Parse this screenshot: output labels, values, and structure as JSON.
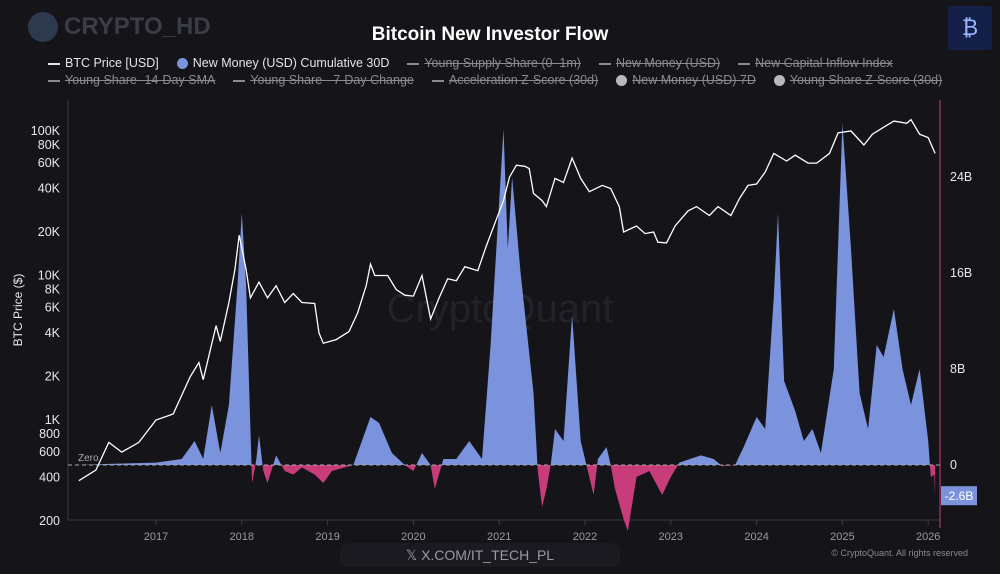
{
  "brand": {
    "watermark": "CRYPTO_HD",
    "logo_icon": "bitcoin-magnifier-icon"
  },
  "title": "Bitcoin New Investor Flow",
  "legend": [
    {
      "label": "BTC Price [USD]",
      "marker": "line",
      "enabled": true,
      "color": "#ffffff"
    },
    {
      "label": "New Money (USD) Cumulative 30D",
      "marker": "dot",
      "enabled": true,
      "color": "#7b93dc"
    },
    {
      "label": "Young Supply Share (0–1m)",
      "marker": "line",
      "enabled": false
    },
    {
      "label": "New Money (USD)",
      "marker": "line",
      "enabled": false
    },
    {
      "label": "New Capital Inflow Index",
      "marker": "line",
      "enabled": false
    },
    {
      "label": "Young Share -14-Day SMA",
      "marker": "line",
      "enabled": false
    },
    {
      "label": "Young Share - 7-Day Change",
      "marker": "line",
      "enabled": false
    },
    {
      "label": "Acceleration Z-Score (30d)",
      "marker": "line",
      "enabled": false
    },
    {
      "label": "New Money (USD) 7D",
      "marker": "dot",
      "enabled": false,
      "color": "#b8b8c0"
    },
    {
      "label": "Young Share Z-Score (30d)",
      "marker": "dot",
      "enabled": false,
      "color": "#b8b8c0"
    }
  ],
  "chart_data": {
    "type": "line+area",
    "title": "Bitcoin New Investor Flow",
    "ylabel_left": "BTC Price ($)",
    "yscale_left": "log",
    "ylim_left": [
      200,
      200000
    ],
    "yticks_left": [
      "100K",
      "80K",
      "60K",
      "40K",
      "20K",
      "10K",
      "8K",
      "6K",
      "4K",
      "2K",
      "1K",
      "800",
      "600",
      "400",
      "200"
    ],
    "ytick_values_left": [
      100000,
      80000,
      60000,
      40000,
      20000,
      10000,
      8000,
      6000,
      4000,
      2000,
      1000,
      800,
      600,
      400,
      200
    ],
    "yticks_right": [
      "24B",
      "16B",
      "8B",
      "0"
    ],
    "ytick_values_right": [
      24,
      16,
      8,
      0
    ],
    "ylim_right_billions": [
      -4.6,
      30
    ],
    "xticks": [
      "2017",
      "2018",
      "2019",
      "2020",
      "2021",
      "2022",
      "2023",
      "2024",
      "2025",
      "2026"
    ],
    "zero_label": "Zero",
    "last_value_label": "-2.6B",
    "grid": false,
    "colors": {
      "price": "#ffffff",
      "positive": "#7b93dc",
      "negative": "#c83c7a",
      "right_axis": "#c83c7a"
    },
    "price_series": {
      "name": "BTC Price [USD]",
      "x": [
        2016.1,
        2016.3,
        2016.45,
        2016.6,
        2016.8,
        2017.0,
        2017.2,
        2017.4,
        2017.5,
        2017.55,
        2017.7,
        2017.75,
        2017.85,
        2017.92,
        2017.97,
        2018.05,
        2018.1,
        2018.2,
        2018.3,
        2018.4,
        2018.5,
        2018.6,
        2018.7,
        2018.85,
        2018.9,
        2018.95,
        2019.1,
        2019.25,
        2019.35,
        2019.45,
        2019.5,
        2019.55,
        2019.7,
        2019.8,
        2019.9,
        2020.0,
        2020.1,
        2020.2,
        2020.3,
        2020.4,
        2020.5,
        2020.6,
        2020.75,
        2020.85,
        2020.95,
        2021.05,
        2021.12,
        2021.2,
        2021.3,
        2021.35,
        2021.4,
        2021.5,
        2021.55,
        2021.65,
        2021.75,
        2021.85,
        2021.95,
        2022.05,
        2022.2,
        2022.3,
        2022.4,
        2022.45,
        2022.6,
        2022.7,
        2022.8,
        2022.85,
        2022.95,
        2023.05,
        2023.2,
        2023.3,
        2023.45,
        2023.55,
        2023.7,
        2023.8,
        2023.9,
        2024.0,
        2024.1,
        2024.2,
        2024.35,
        2024.45,
        2024.6,
        2024.7,
        2024.85,
        2024.95,
        2025.1,
        2025.25,
        2025.35,
        2025.5,
        2025.6,
        2025.75,
        2025.8,
        2025.9,
        2026.0,
        2026.08
      ],
      "y": [
        380,
        450,
        700,
        600,
        700,
        1000,
        1100,
        2000,
        2500,
        1900,
        4500,
        3500,
        6500,
        11000,
        19000,
        11000,
        7000,
        9000,
        7000,
        8500,
        6500,
        7500,
        6500,
        6400,
        4000,
        3400,
        3600,
        4100,
        5500,
        8500,
        12000,
        10000,
        10000,
        8000,
        7300,
        7200,
        10000,
        5000,
        7000,
        9500,
        9200,
        11500,
        10800,
        16000,
        23000,
        33000,
        48000,
        58000,
        57000,
        55000,
        37000,
        33000,
        30000,
        47000,
        44000,
        65000,
        47000,
        38000,
        42000,
        40000,
        30000,
        20000,
        22000,
        19500,
        20000,
        17000,
        16800,
        22000,
        28000,
        30000,
        26000,
        30000,
        26000,
        34000,
        42000,
        43000,
        52000,
        70000,
        62000,
        68000,
        60000,
        60000,
        70000,
        97000,
        100000,
        80000,
        95000,
        108000,
        117000,
        113000,
        120000,
        95000,
        90000,
        70000
      ]
    },
    "new_money_series": {
      "name": "New Money (USD) Cumulative 30D",
      "unit": "B USD",
      "x": [
        2016.1,
        2016.5,
        2017.0,
        2017.3,
        2017.45,
        2017.55,
        2017.65,
        2017.75,
        2017.85,
        2017.95,
        2018.0,
        2018.05,
        2018.1,
        2018.12,
        2018.17,
        2018.2,
        2018.25,
        2018.3,
        2018.4,
        2018.5,
        2018.6,
        2018.7,
        2018.85,
        2018.95,
        2019.05,
        2019.3,
        2019.4,
        2019.5,
        2019.6,
        2019.75,
        2019.9,
        2020.0,
        2020.1,
        2020.2,
        2020.25,
        2020.35,
        2020.5,
        2020.65,
        2020.8,
        2020.9,
        2021.0,
        2021.05,
        2021.1,
        2021.15,
        2021.25,
        2021.4,
        2021.45,
        2021.5,
        2021.55,
        2021.6,
        2021.65,
        2021.75,
        2021.85,
        2021.95,
        2022.05,
        2022.1,
        2022.15,
        2022.25,
        2022.3,
        2022.35,
        2022.45,
        2022.5,
        2022.6,
        2022.75,
        2022.9,
        2023.0,
        2023.1,
        2023.35,
        2023.5,
        2023.6,
        2023.75,
        2023.85,
        2024.0,
        2024.1,
        2024.2,
        2024.25,
        2024.32,
        2024.45,
        2024.55,
        2024.65,
        2024.75,
        2024.9,
        2025.0,
        2025.1,
        2025.2,
        2025.3,
        2025.4,
        2025.48,
        2025.6,
        2025.7,
        2025.8,
        2025.9,
        2026.0,
        2026.03,
        2026.07,
        2026.08
      ],
      "y": [
        0,
        0.1,
        0.2,
        0.5,
        2.0,
        0.5,
        5,
        1,
        5,
        15,
        21,
        15,
        3,
        -1.5,
        0.5,
        2.5,
        -0.5,
        -1.5,
        0.8,
        -0.5,
        -0.8,
        -0.2,
        -0.8,
        -1.5,
        -0.5,
        0,
        2,
        4,
        3.5,
        1,
        0,
        -0.5,
        1,
        0,
        -2.0,
        0.5,
        0.5,
        2,
        0.5,
        10,
        22,
        28,
        18,
        24,
        16,
        6,
        -0.5,
        -3.5,
        -2,
        0,
        3,
        2,
        12.5,
        2,
        -1,
        -2.5,
        0.5,
        1.5,
        0,
        -2,
        -4.5,
        -5.5,
        -1,
        -0.5,
        -2.5,
        -1,
        0.2,
        0.8,
        0.5,
        -0.1,
        0,
        1.5,
        4,
        3,
        14,
        21,
        7,
        4.5,
        2,
        3,
        1,
        8,
        28.5,
        18,
        6,
        3,
        10,
        9,
        13,
        8,
        5,
        8,
        2,
        -1,
        -0.8,
        -2.6
      ]
    }
  },
  "watermark_center": "CryptoQuant",
  "footer": {
    "x_handle": "X.COM/IT_TECH_PL",
    "copyright": "© CryptoQuant. All rights reserved",
    "x_icon": "x-logo-icon"
  }
}
